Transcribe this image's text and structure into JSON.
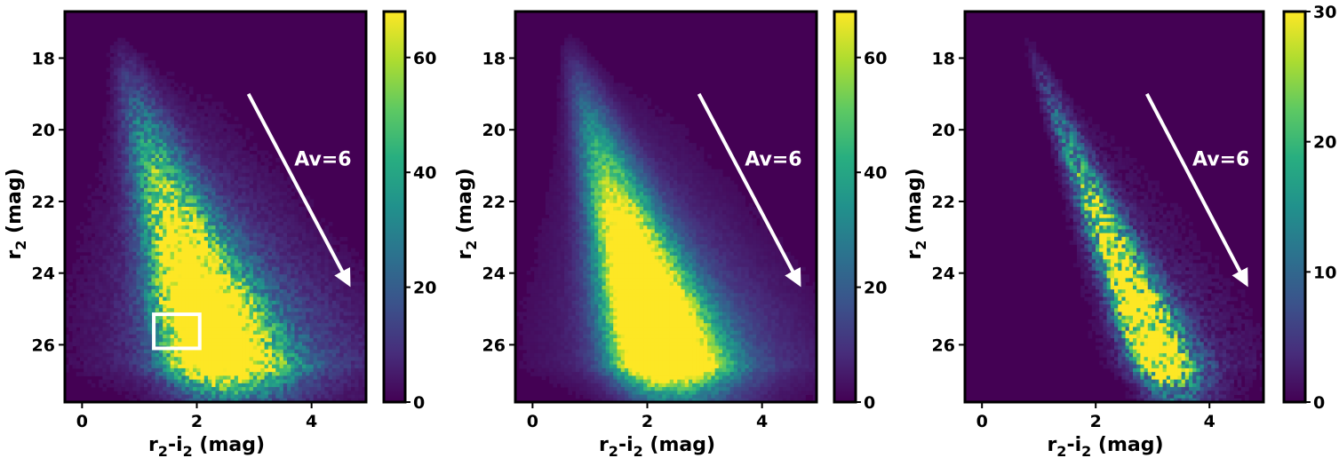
{
  "chart_data": [
    {
      "type": "heatmap",
      "xlabel_main": "r",
      "xlabel_sub1": "2",
      "xlabel_mid": "-i",
      "xlabel_sub2": "2",
      "xlabel_unit": " (mag)",
      "ylabel_main": "r",
      "ylabel_sub": "2",
      "ylabel_unit": " (mag)",
      "xlim": [
        -0.3,
        4.95
      ],
      "ylim": [
        27.6,
        16.7
      ],
      "y_inverted": true,
      "xticks": [
        0,
        2,
        4
      ],
      "xtick_labels": [
        "0",
        "2",
        "4"
      ],
      "yticks": [
        18,
        20,
        22,
        24,
        26
      ],
      "ytick_labels": [
        "18",
        "20",
        "22",
        "24",
        "26"
      ],
      "colorbar": {
        "min": 0,
        "max": 68,
        "ticks": [
          0,
          20,
          40,
          60
        ],
        "tick_labels": [
          "0",
          "20",
          "40",
          "60"
        ],
        "colormap": "viridis"
      },
      "density_model": {
        "peak": 68,
        "width_scale": 1.0,
        "spread_scale": 1.0,
        "tip_x": 0.55,
        "bottom_x": 2.3,
        "noise": 0.35,
        "core_boost": 1.6
      },
      "annotation": {
        "text": "Av=6",
        "arrow_from": [
          2.9,
          19.0
        ],
        "arrow_to": [
          4.65,
          24.3
        ],
        "text_pos": [
          3.7,
          21.0
        ]
      },
      "box": {
        "x0": 1.25,
        "x1": 2.05,
        "y0": 25.15,
        "y1": 26.1
      }
    },
    {
      "type": "heatmap",
      "xlabel_main": "r",
      "xlabel_sub1": "2",
      "xlabel_mid": "-i",
      "xlabel_sub2": "2",
      "xlabel_unit": " (mag)",
      "ylabel_main": "r",
      "ylabel_sub": "2",
      "ylabel_unit": " (mag)",
      "xlim": [
        -0.3,
        4.95
      ],
      "ylim": [
        27.6,
        16.7
      ],
      "y_inverted": true,
      "xticks": [
        0,
        2,
        4
      ],
      "xtick_labels": [
        "0",
        "2",
        "4"
      ],
      "yticks": [
        18,
        20,
        22,
        24,
        26
      ],
      "ytick_labels": [
        "18",
        "20",
        "22",
        "24",
        "26"
      ],
      "colorbar": {
        "min": 0,
        "max": 68,
        "ticks": [
          0,
          20,
          40,
          60
        ],
        "tick_labels": [
          "0",
          "20",
          "40",
          "60"
        ],
        "colormap": "viridis"
      },
      "density_model": {
        "peak": 68,
        "width_scale": 0.9,
        "spread_scale": 0.95,
        "tip_x": 0.55,
        "bottom_x": 2.2,
        "noise": 0.18,
        "core_boost": 1.8
      },
      "annotation": {
        "text": "Av=6",
        "arrow_from": [
          2.9,
          19.0
        ],
        "arrow_to": [
          4.65,
          24.3
        ],
        "text_pos": [
          3.7,
          21.0
        ]
      }
    },
    {
      "type": "heatmap",
      "xlabel_main": "r",
      "xlabel_sub1": "2",
      "xlabel_mid": "-i",
      "xlabel_sub2": "2",
      "xlabel_unit": " (mag)",
      "ylabel_main": "r",
      "ylabel_sub": "2",
      "ylabel_unit": " (mag)",
      "xlim": [
        -0.3,
        4.95
      ],
      "ylim": [
        27.6,
        16.7
      ],
      "y_inverted": true,
      "xticks": [
        0,
        2,
        4
      ],
      "xtick_labels": [
        "0",
        "2",
        "4"
      ],
      "yticks": [
        18,
        20,
        22,
        24,
        26
      ],
      "ytick_labels": [
        "18",
        "20",
        "22",
        "24",
        "26"
      ],
      "colorbar": {
        "min": 0,
        "max": 30,
        "ticks": [
          0,
          10,
          20,
          30
        ],
        "tick_labels": [
          "0",
          "10",
          "20",
          "30"
        ],
        "colormap": "viridis"
      },
      "density_model": {
        "peak": 30,
        "width_scale": 0.35,
        "spread_scale": 0.55,
        "tip_x": 0.7,
        "bottom_x": 3.1,
        "noise": 0.55,
        "core_boost": 1.4
      },
      "annotation": {
        "text": "Av=6",
        "arrow_from": [
          2.9,
          19.0
        ],
        "arrow_to": [
          4.65,
          24.3
        ],
        "text_pos": [
          3.7,
          21.0
        ]
      }
    }
  ]
}
